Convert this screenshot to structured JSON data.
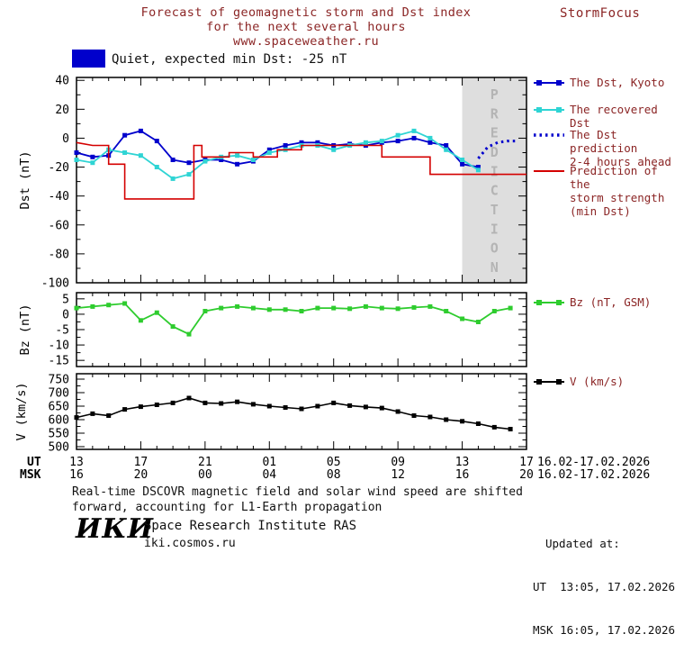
{
  "header": {
    "title_line1": "Forecast of geomagnetic storm and Dst index",
    "title_line2": "for the next several hours",
    "title_line3": "www.spaceweather.ru",
    "brand": "StormFocus"
  },
  "status": {
    "text": "Quiet, expected min Dst: -25 nT",
    "swatch_color": "#0000cc"
  },
  "legend": {
    "dst_kyoto": "The Dst, Kyoto",
    "recovered": "The recovered Dst",
    "prediction": "The Dst prediction\n2-4 hours ahead",
    "storm_strength": "Prediction of the\nstorm strength\n(min Dst)",
    "bz": "Bz (nT, GSM)",
    "v": "V (km/s)"
  },
  "xaxis": {
    "ut_label": "UT",
    "msk_label": "MSK",
    "ut_ticks": [
      "13",
      "17",
      "21",
      "01",
      "05",
      "09",
      "13",
      "17"
    ],
    "msk_ticks": [
      "16",
      "20",
      "00",
      "04",
      "08",
      "12",
      "16",
      "20"
    ],
    "ut_date": "16.02-17.02.2026",
    "msk_date": "16.02-17.02.2026"
  },
  "footer": {
    "note_line1": "Real-time DSCOVR magnetic field and solar wind speed are shifted",
    "note_line2": "forward, accounting for L1-Earth propagation",
    "updated_label": "Updated at:",
    "updated_ut": "UT  13:05, 17.02.2026",
    "updated_msk": "MSK 16:05, 17.02.2026",
    "logo": "ИКИ",
    "institute": "Space Research Institute RAS",
    "site": "iki.cosmos.ru"
  },
  "colors": {
    "accent_text": "#8b2525",
    "dst_blue": "#0000cc",
    "recovered_cyan": "#2fd4d4",
    "prediction_red": "#d40000",
    "bz_green": "#2ecc2e",
    "v_black": "#000000",
    "band_gray": "#dedede"
  },
  "chart_data": [
    {
      "id": "dst",
      "type": "line",
      "ylabel": "Dst (nT)",
      "ylim": [
        -100,
        42
      ],
      "yticks": [
        40,
        20,
        0,
        -20,
        -40,
        -60,
        -80,
        -100
      ],
      "xlim": [
        0,
        28
      ],
      "x_major": 4,
      "x_minor": 1,
      "band": {
        "label": "PREDICTION",
        "start": 24,
        "end": 28
      },
      "series": [
        {
          "name": "The Dst, Kyoto",
          "color": "#0000cc",
          "marker": "square",
          "width": 1.8,
          "x": [
            0,
            1,
            2,
            3,
            4,
            5,
            6,
            7,
            8,
            9,
            10,
            11,
            12,
            13,
            14,
            15,
            16,
            17,
            18,
            19,
            20,
            21,
            22,
            23,
            24,
            25
          ],
          "values": [
            -10,
            -13,
            -12,
            2,
            5,
            -2,
            -15,
            -17,
            -15,
            -15,
            -18,
            -16,
            -8,
            -5,
            -3,
            -3,
            -5,
            -4,
            -5,
            -3,
            -2,
            0,
            -3,
            -5,
            -18,
            -20
          ]
        },
        {
          "name": "The recovered Dst",
          "color": "#2fd4d4",
          "marker": "square",
          "width": 1.8,
          "x": [
            0,
            1,
            2,
            3,
            4,
            5,
            6,
            7,
            8,
            9,
            10,
            11,
            12,
            13,
            14,
            15,
            16,
            17,
            18,
            19,
            20,
            21,
            22,
            23,
            24,
            25
          ],
          "values": [
            -15,
            -17,
            -8,
            -10,
            -12,
            -20,
            -28,
            -25,
            -16,
            -13,
            -12,
            -15,
            -10,
            -8,
            -5,
            -5,
            -8,
            -5,
            -3,
            -2,
            2,
            5,
            0,
            -8,
            -15,
            -22
          ]
        },
        {
          "name": "The Dst prediction 2-4 hours ahead",
          "color": "#0000cc",
          "style": "dotted",
          "width": 3,
          "x": [
            25,
            25.6,
            26.2,
            26.8,
            27.4
          ],
          "values": [
            -14,
            -6,
            -3,
            -2,
            -2
          ]
        },
        {
          "name": "Prediction of the storm strength (min Dst)",
          "color": "#d40000",
          "width": 1.6,
          "x": [
            0,
            1,
            2,
            2,
            3,
            3,
            7.3,
            7.3,
            7.8,
            7.8,
            9.5,
            9.5,
            11,
            11,
            12.5,
            12.5,
            14,
            14,
            19,
            19,
            22,
            22,
            28
          ],
          "values": [
            -3,
            -5,
            -5,
            -18,
            -18,
            -42,
            -42,
            -5,
            -5,
            -13,
            -13,
            -10,
            -10,
            -13,
            -13,
            -8,
            -8,
            -5,
            -5,
            -13,
            -13,
            -25,
            -25
          ]
        }
      ]
    },
    {
      "id": "bz",
      "type": "line",
      "ylabel": "Bz (nT)",
      "ylim": [
        -17,
        7
      ],
      "yticks": [
        5,
        0,
        -5,
        -10,
        -15
      ],
      "xlim": [
        0,
        28
      ],
      "x_major": 4,
      "x_minor": 1,
      "series": [
        {
          "name": "Bz (nT, GSM)",
          "color": "#2ecc2e",
          "marker": "square",
          "width": 1.8,
          "x": [
            0,
            1,
            2,
            3,
            4,
            5,
            6,
            7,
            8,
            9,
            10,
            11,
            12,
            13,
            14,
            15,
            16,
            17,
            18,
            19,
            20,
            21,
            22,
            23,
            24,
            25,
            26,
            27
          ],
          "values": [
            2,
            2.5,
            3,
            3.5,
            -2,
            0.5,
            -4,
            -6.5,
            1,
            2,
            2.5,
            2,
            1.5,
            1.5,
            1,
            2,
            2,
            1.8,
            2.5,
            2,
            1.8,
            2.2,
            2.5,
            1,
            -1.5,
            -2.5,
            1,
            2
          ]
        }
      ]
    },
    {
      "id": "v",
      "type": "line",
      "ylabel": "V (km/s)",
      "ylim": [
        490,
        770
      ],
      "yticks": [
        750,
        700,
        650,
        600,
        550,
        500
      ],
      "xlim": [
        0,
        28
      ],
      "x_major": 4,
      "x_minor": 1,
      "series": [
        {
          "name": "V (km/s)",
          "color": "#000000",
          "marker": "square",
          "width": 1.6,
          "x": [
            0,
            1,
            2,
            3,
            4,
            5,
            6,
            7,
            8,
            9,
            10,
            11,
            12,
            13,
            14,
            15,
            16,
            17,
            18,
            19,
            20,
            21,
            22,
            23,
            24,
            25,
            26,
            27
          ],
          "values": [
            608,
            622,
            615,
            638,
            648,
            655,
            662,
            680,
            662,
            660,
            666,
            657,
            650,
            645,
            640,
            650,
            662,
            652,
            647,
            643,
            630,
            615,
            610,
            600,
            594,
            585,
            572,
            565
          ]
        }
      ]
    }
  ]
}
